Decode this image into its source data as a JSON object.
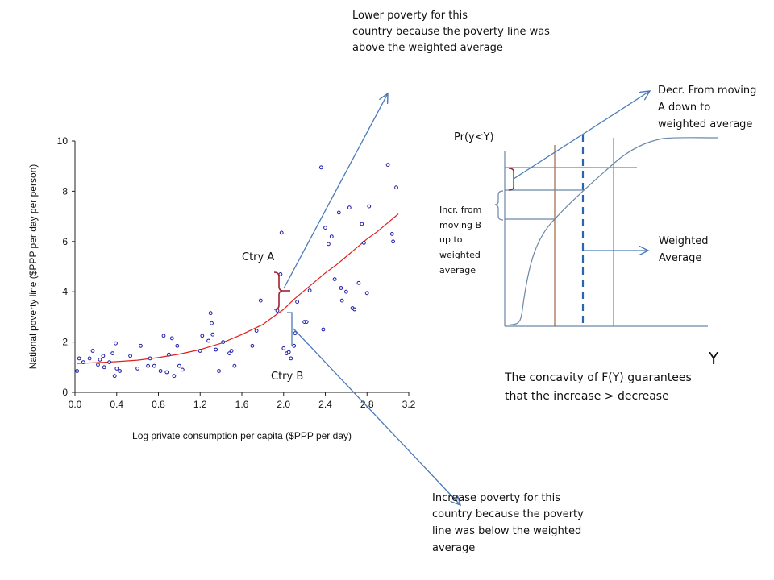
{
  "chart_data": {
    "type": "scatter",
    "xlabel": "Log private consumption per capita ($PPP per day)",
    "ylabel": "National poverty line ($PPP per day per person)",
    "xlim": [
      0,
      3.2
    ],
    "ylim": [
      0,
      10
    ],
    "x_ticks": [
      "0.0",
      "0.4",
      "0.8",
      "1.2",
      "1.6",
      "2.0",
      "2.4",
      "2.8",
      "3.2"
    ],
    "y_ticks": [
      "0",
      "2",
      "4",
      "6",
      "8",
      "10"
    ],
    "grid": false,
    "points": [
      [
        0.02,
        0.85
      ],
      [
        0.04,
        1.35
      ],
      [
        0.08,
        1.2
      ],
      [
        0.14,
        1.35
      ],
      [
        0.17,
        1.65
      ],
      [
        0.22,
        1.1
      ],
      [
        0.24,
        1.3
      ],
      [
        0.27,
        1.45
      ],
      [
        0.28,
        1.0
      ],
      [
        0.33,
        1.2
      ],
      [
        0.36,
        1.55
      ],
      [
        0.38,
        0.65
      ],
      [
        0.39,
        1.95
      ],
      [
        0.4,
        0.95
      ],
      [
        0.43,
        0.85
      ],
      [
        0.53,
        1.45
      ],
      [
        0.6,
        0.95
      ],
      [
        0.63,
        1.85
      ],
      [
        0.7,
        1.05
      ],
      [
        0.72,
        1.35
      ],
      [
        0.76,
        1.05
      ],
      [
        0.82,
        0.85
      ],
      [
        0.85,
        2.25
      ],
      [
        0.88,
        0.8
      ],
      [
        0.9,
        1.5
      ],
      [
        0.93,
        2.15
      ],
      [
        0.95,
        0.65
      ],
      [
        0.98,
        1.85
      ],
      [
        1.0,
        1.05
      ],
      [
        1.03,
        0.9
      ],
      [
        1.2,
        1.65
      ],
      [
        1.22,
        2.25
      ],
      [
        1.28,
        2.05
      ],
      [
        1.3,
        3.15
      ],
      [
        1.31,
        2.75
      ],
      [
        1.32,
        2.3
      ],
      [
        1.35,
        1.7
      ],
      [
        1.38,
        0.85
      ],
      [
        1.42,
        2.0
      ],
      [
        1.48,
        1.55
      ],
      [
        1.5,
        1.65
      ],
      [
        1.53,
        1.05
      ],
      [
        1.7,
        1.85
      ],
      [
        1.74,
        2.45
      ],
      [
        1.78,
        3.65
      ],
      [
        1.94,
        3.25
      ],
      [
        1.97,
        4.7
      ],
      [
        1.98,
        6.35
      ],
      [
        2.0,
        1.75
      ],
      [
        2.03,
        1.55
      ],
      [
        2.05,
        1.6
      ],
      [
        2.07,
        1.35
      ],
      [
        2.1,
        1.85
      ],
      [
        2.11,
        2.35
      ],
      [
        2.13,
        3.6
      ],
      [
        2.2,
        2.8
      ],
      [
        2.22,
        2.8
      ],
      [
        2.25,
        4.05
      ],
      [
        2.36,
        8.95
      ],
      [
        2.38,
        2.5
      ],
      [
        2.4,
        6.55
      ],
      [
        2.43,
        5.9
      ],
      [
        2.46,
        6.2
      ],
      [
        2.49,
        4.5
      ],
      [
        2.53,
        7.15
      ],
      [
        2.55,
        4.15
      ],
      [
        2.56,
        3.65
      ],
      [
        2.6,
        4.0
      ],
      [
        2.63,
        7.35
      ],
      [
        2.66,
        3.35
      ],
      [
        2.68,
        3.3
      ],
      [
        2.72,
        4.35
      ],
      [
        2.75,
        6.7
      ],
      [
        2.77,
        5.95
      ],
      [
        2.8,
        3.95
      ],
      [
        2.82,
        7.4
      ],
      [
        3.0,
        9.05
      ],
      [
        3.04,
        6.3
      ],
      [
        3.05,
        6.0
      ],
      [
        3.08,
        8.15
      ]
    ],
    "fit_curve": [
      [
        0.02,
        1.15
      ],
      [
        0.2,
        1.18
      ],
      [
        0.4,
        1.22
      ],
      [
        0.6,
        1.28
      ],
      [
        0.8,
        1.38
      ],
      [
        1.0,
        1.52
      ],
      [
        1.2,
        1.7
      ],
      [
        1.4,
        1.95
      ],
      [
        1.6,
        2.3
      ],
      [
        1.8,
        2.7
      ],
      [
        1.9,
        3.0
      ],
      [
        2.0,
        3.3
      ],
      [
        2.1,
        3.7
      ],
      [
        2.2,
        4.05
      ],
      [
        2.3,
        4.4
      ],
      [
        2.4,
        4.75
      ],
      [
        2.5,
        5.05
      ],
      [
        2.6,
        5.4
      ],
      [
        2.7,
        5.75
      ],
      [
        2.8,
        6.1
      ],
      [
        2.9,
        6.4
      ],
      [
        3.0,
        6.75
      ],
      [
        3.1,
        7.1
      ]
    ]
  },
  "annotations": {
    "ctry_a": "Ctry A",
    "ctry_b": "Ctry B",
    "top_note": [
      "Lower poverty for this",
      "country because the poverty line was",
      "above the weighted average"
    ],
    "bottom_note": [
      "Increase poverty for this",
      "country because the poverty",
      "line was below the weighted",
      "average"
    ]
  },
  "diagram": {
    "ylabel": "Pr(y<Y)",
    "xlabel": "Y",
    "decr_note": [
      "Decr. From moving",
      "A down to",
      "weighted average"
    ],
    "incr_note": [
      "Incr. from",
      "moving B",
      "up to",
      "weighted",
      "average"
    ],
    "weighted_label": [
      "Weighted",
      "Average"
    ],
    "concavity_note": [
      "The concavity of F(Y) guarantees",
      "that the  increase > decrease"
    ]
  },
  "colors": {
    "points": "#1a1aa8",
    "fit": "#e02020",
    "arrow": "#4a7ab8",
    "diagram": "#6b87a8",
    "dashed": "#2e63b0",
    "brown": "#8b4a1e",
    "brace": "#a02030"
  }
}
